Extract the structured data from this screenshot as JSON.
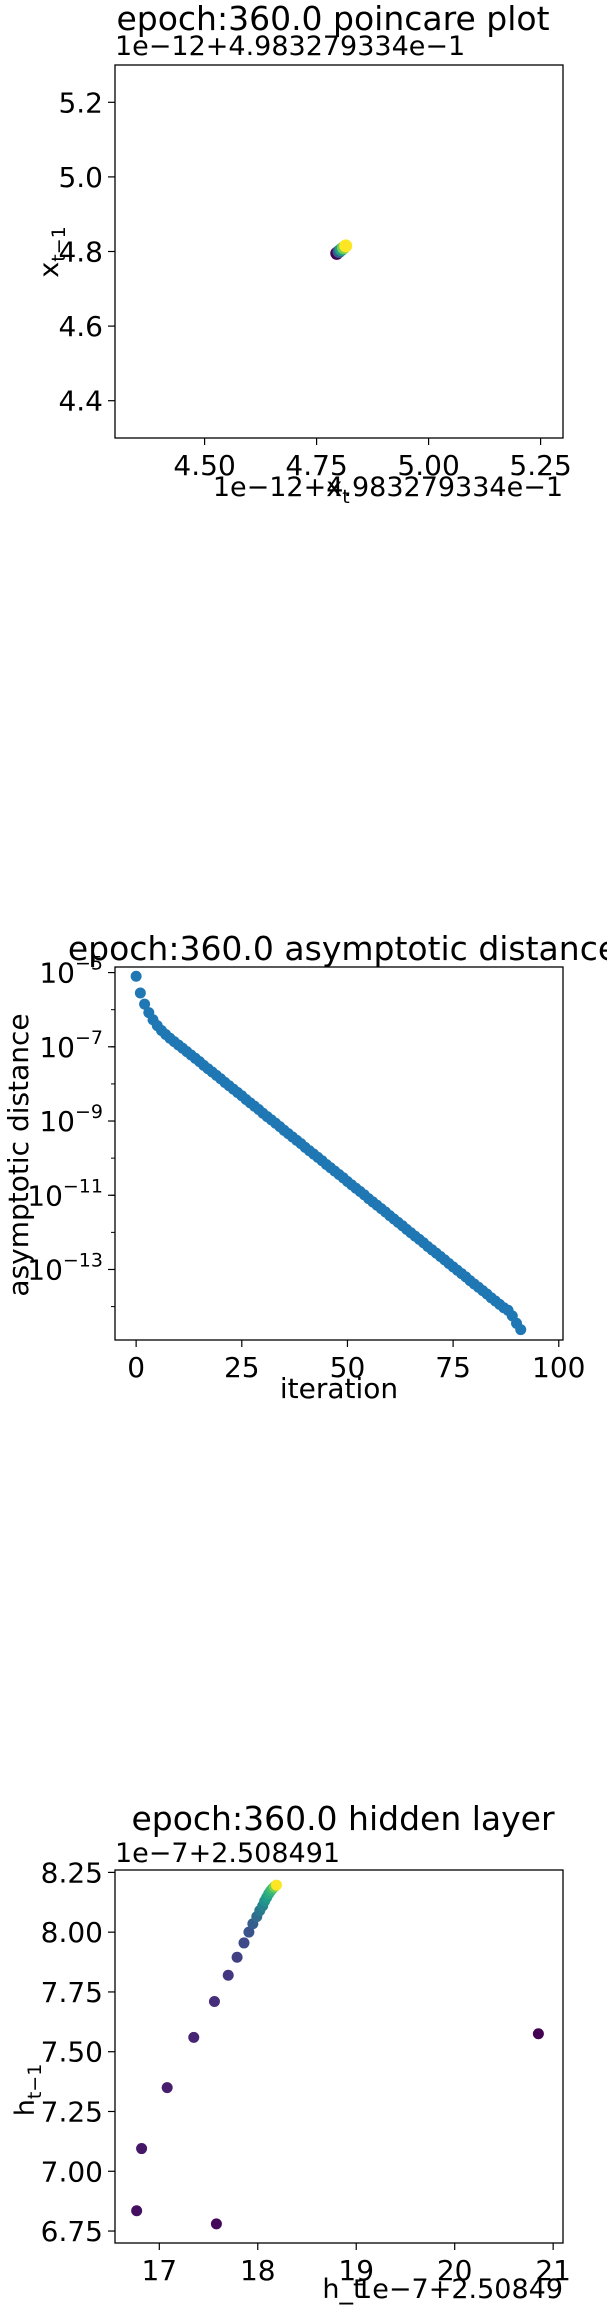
{
  "chart_data": [
    {
      "type": "scatter",
      "title": "epoch:360.0 poincare plot",
      "xlabel": "x_t",
      "ylabel": "x_{t-1}",
      "x_offset_label": "1e−12+4.983279334e−1",
      "y_offset_label": "1e−12+4.983279334e−1",
      "xlim": [
        4.3,
        5.3
      ],
      "ylim": [
        4.3,
        5.3
      ],
      "x_ticks": [
        4.5,
        4.75,
        5.0,
        5.25
      ],
      "x_tick_labels": [
        "4.50",
        "4.75",
        "5.00",
        "5.25"
      ],
      "y_ticks": [
        4.4,
        4.6,
        4.8,
        5.0,
        5.2
      ],
      "y_tick_labels": [
        "4.4",
        "4.6",
        "4.8",
        "5.0",
        "5.2"
      ],
      "grid": false,
      "colormap": "viridis",
      "points": [
        {
          "x": 4.795,
          "y": 4.795,
          "t": 0.0
        },
        {
          "x": 4.8,
          "y": 4.8,
          "t": 0.3
        },
        {
          "x": 4.805,
          "y": 4.805,
          "t": 0.55
        },
        {
          "x": 4.81,
          "y": 4.81,
          "t": 0.8
        },
        {
          "x": 4.815,
          "y": 4.815,
          "t": 1.0
        }
      ]
    },
    {
      "type": "scatter",
      "title": "epoch:360.0 asymptotic distance",
      "xlabel": "iteration",
      "ylabel": "asymptotic distance",
      "yscale": "log",
      "xlim": [
        -5,
        101
      ],
      "ylim_log10": [
        -14.9,
        -4.85
      ],
      "x_ticks": [
        0,
        25,
        50,
        75,
        100
      ],
      "x_tick_labels": [
        "0",
        "25",
        "50",
        "75",
        "100"
      ],
      "y_tick_labels": [
        {
          "base": "10",
          "exp": "−5",
          "value": -5
        },
        {
          "base": "10",
          "exp": "−7",
          "value": -7
        },
        {
          "base": "10",
          "exp": "−9",
          "value": -9
        },
        {
          "base": "10",
          "exp": "−11",
          "value": -11
        },
        {
          "base": "10",
          "exp": "−13",
          "value": -13
        }
      ],
      "grid": false,
      "color": "#1f77b4",
      "series": {
        "x": [
          0,
          1,
          2,
          3,
          4,
          5,
          6,
          7,
          8,
          9,
          10,
          11,
          12,
          13,
          14,
          15,
          16,
          17,
          18,
          19,
          20,
          21,
          22,
          23,
          24,
          25,
          26,
          27,
          28,
          29,
          30,
          31,
          32,
          33,
          34,
          35,
          36,
          37,
          38,
          39,
          40,
          41,
          42,
          43,
          44,
          45,
          46,
          47,
          48,
          49,
          50,
          51,
          52,
          53,
          54,
          55,
          56,
          57,
          58,
          59,
          60,
          61,
          62,
          63,
          64,
          65,
          66,
          67,
          68,
          69,
          70,
          71,
          72,
          73,
          74,
          75,
          76,
          77,
          78,
          79,
          80,
          81,
          82,
          83,
          84,
          85,
          86,
          87,
          88,
          89,
          90,
          91
        ],
        "log10_y": [
          -5.1,
          -5.55,
          -5.85,
          -6.08,
          -6.27,
          -6.43,
          -6.56,
          -6.67,
          -6.77,
          -6.86,
          -6.95,
          -7.04,
          -7.13,
          -7.22,
          -7.31,
          -7.4,
          -7.5,
          -7.59,
          -7.68,
          -7.77,
          -7.86,
          -7.96,
          -8.05,
          -8.14,
          -8.23,
          -8.32,
          -8.42,
          -8.51,
          -8.6,
          -8.69,
          -8.79,
          -8.88,
          -8.97,
          -9.06,
          -9.15,
          -9.25,
          -9.34,
          -9.43,
          -9.52,
          -9.61,
          -9.71,
          -9.8,
          -9.89,
          -9.98,
          -10.07,
          -10.17,
          -10.26,
          -10.35,
          -10.44,
          -10.53,
          -10.63,
          -10.72,
          -10.81,
          -10.9,
          -10.99,
          -11.09,
          -11.18,
          -11.27,
          -11.36,
          -11.45,
          -11.55,
          -11.64,
          -11.73,
          -11.82,
          -11.92,
          -12.01,
          -12.1,
          -12.19,
          -12.28,
          -12.38,
          -12.47,
          -12.56,
          -12.65,
          -12.74,
          -12.84,
          -12.93,
          -13.02,
          -13.11,
          -13.2,
          -13.3,
          -13.39,
          -13.48,
          -13.57,
          -13.66,
          -13.76,
          -13.85,
          -13.94,
          -14.03,
          -14.1,
          -14.25,
          -14.45,
          -14.62
        ]
      }
    },
    {
      "type": "scatter",
      "title": "epoch:360.0 hidden layer",
      "xlabel": "h_t",
      "ylabel": "h_{t-1}",
      "x_offset_label": "1e−7+2.50849",
      "y_offset_label": "1e−7+2.508491",
      "xlim": [
        16.55,
        21.1
      ],
      "ylim": [
        6.7,
        8.26
      ],
      "x_ticks": [
        17,
        18,
        19,
        20,
        21
      ],
      "x_tick_labels": [
        "17",
        "18",
        "19",
        "20",
        "21"
      ],
      "y_ticks": [
        6.75,
        7.0,
        7.25,
        7.5,
        7.75,
        8.0,
        8.25
      ],
      "y_tick_labels": [
        "6.75",
        "7.00",
        "7.25",
        "7.50",
        "7.75",
        "8.00",
        "8.25"
      ],
      "grid": false,
      "colormap": "viridis",
      "points": [
        {
          "x": 20.85,
          "y": 7.575,
          "t": 0.0
        },
        {
          "x": 17.58,
          "y": 6.78,
          "t": 0.02
        },
        {
          "x": 16.77,
          "y": 6.835,
          "t": 0.04
        },
        {
          "x": 16.82,
          "y": 7.095,
          "t": 0.06
        },
        {
          "x": 17.08,
          "y": 7.35,
          "t": 0.08
        },
        {
          "x": 17.35,
          "y": 7.56,
          "t": 0.1
        },
        {
          "x": 17.56,
          "y": 7.71,
          "t": 0.13
        },
        {
          "x": 17.7,
          "y": 7.82,
          "t": 0.16
        },
        {
          "x": 17.79,
          "y": 7.895,
          "t": 0.19
        },
        {
          "x": 17.86,
          "y": 7.955,
          "t": 0.22
        },
        {
          "x": 17.91,
          "y": 8.0,
          "t": 0.26
        },
        {
          "x": 17.95,
          "y": 8.035,
          "t": 0.3
        },
        {
          "x": 17.99,
          "y": 8.065,
          "t": 0.35
        },
        {
          "x": 18.02,
          "y": 8.09,
          "t": 0.4
        },
        {
          "x": 18.05,
          "y": 8.11,
          "t": 0.45
        },
        {
          "x": 18.07,
          "y": 8.13,
          "t": 0.5
        },
        {
          "x": 18.09,
          "y": 8.145,
          "t": 0.55
        },
        {
          "x": 18.11,
          "y": 8.16,
          "t": 0.6
        },
        {
          "x": 18.13,
          "y": 8.172,
          "t": 0.65
        },
        {
          "x": 18.15,
          "y": 8.182,
          "t": 0.7
        },
        {
          "x": 18.17,
          "y": 8.19,
          "t": 0.8
        },
        {
          "x": 18.19,
          "y": 8.197,
          "t": 1.0
        }
      ]
    }
  ]
}
